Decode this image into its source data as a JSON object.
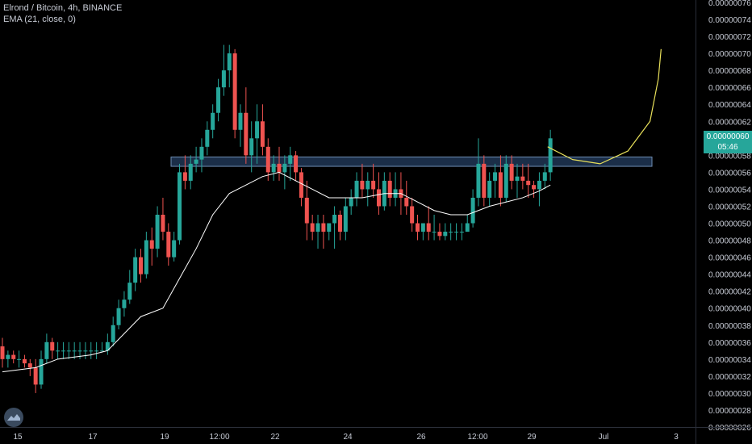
{
  "header": {
    "symbol_line": "Elrond / Bitcoin, 4h, BINANCE",
    "indicator_line": "EMA (21, close, 0)"
  },
  "last_price": {
    "value": "0.00000060",
    "countdown": "05:46"
  },
  "colors": {
    "background": "#000000",
    "up": "#26a69a",
    "down": "#ef5350",
    "ema": "#ffffff",
    "zone_fill": "#1e3350",
    "zone_border": "#6f8fb5",
    "projection": "#e8e05a",
    "axis_text": "#c8ccd6"
  },
  "chart_data": {
    "type": "candlestick",
    "symbol": "Elrond / Bitcoin",
    "interval": "4h",
    "exchange": "BINANCE",
    "y_axis": {
      "range": [
        2.6e-07,
        7.6e-07
      ],
      "tick_labels": [
        "0.00000076",
        "0.00000074",
        "0.00000072",
        "0.00000070",
        "0.00000068",
        "0.00000066",
        "0.00000064",
        "0.00000062",
        "0.00000060",
        "0.00000058",
        "0.00000056",
        "0.00000054",
        "0.00000052",
        "0.00000050",
        "0.00000048",
        "0.00000046",
        "0.00000044",
        "0.00000042",
        "0.00000040",
        "0.00000038",
        "0.00000036",
        "0.00000034",
        "0.00000032",
        "0.00000030",
        "0.00000028",
        "0.00000026"
      ]
    },
    "x_axis": {
      "tick_labels": [
        "15",
        "17",
        "19",
        "12:00",
        "22",
        "24",
        "26",
        "12:00",
        "29",
        "Jul",
        "3"
      ]
    },
    "ohlc": [
      [
        35.5,
        36.5,
        33,
        34
      ],
      [
        34,
        35,
        33,
        34.5
      ],
      [
        34.5,
        35,
        33.5,
        34
      ],
      [
        34,
        35,
        33,
        34
      ],
      [
        34,
        34.5,
        33,
        33.5
      ],
      [
        33.5,
        34,
        32,
        33
      ],
      [
        33,
        34,
        30,
        31
      ],
      [
        31,
        35,
        30.5,
        34
      ],
      [
        34,
        37,
        33.5,
        36
      ],
      [
        36,
        36.5,
        34,
        35
      ],
      [
        35,
        36,
        34,
        35
      ],
      [
        35,
        36,
        34,
        35
      ],
      [
        35,
        36,
        34,
        35
      ],
      [
        35,
        36,
        34,
        35
      ],
      [
        35,
        36,
        34,
        35
      ],
      [
        35,
        36,
        34,
        35
      ],
      [
        35,
        36,
        34,
        35
      ],
      [
        35,
        36,
        34,
        35
      ],
      [
        35,
        36,
        35,
        35
      ],
      [
        35,
        37,
        34.5,
        36
      ],
      [
        36,
        39,
        35.5,
        38
      ],
      [
        38,
        41,
        37.5,
        40
      ],
      [
        40,
        42,
        39,
        41
      ],
      [
        41,
        44.5,
        40.5,
        43
      ],
      [
        43,
        47,
        42,
        46
      ],
      [
        46,
        47,
        43,
        44
      ],
      [
        44,
        49,
        43.5,
        48
      ],
      [
        48,
        49.5,
        45,
        47
      ],
      [
        47,
        52,
        46,
        51
      ],
      [
        51,
        53,
        48,
        49
      ],
      [
        49,
        50,
        45,
        46
      ],
      [
        46,
        49,
        45.5,
        48
      ],
      [
        48,
        57,
        47.5,
        56
      ],
      [
        56,
        58,
        54,
        55
      ],
      [
        55,
        58,
        54,
        57
      ],
      [
        57,
        59,
        56,
        57.5
      ],
      [
        57.5,
        60,
        56,
        59
      ],
      [
        59,
        62,
        58,
        61
      ],
      [
        61,
        64,
        60,
        63
      ],
      [
        63,
        67,
        62,
        66
      ],
      [
        66,
        71,
        65,
        68
      ],
      [
        68,
        71,
        66,
        70
      ],
      [
        70,
        70.5,
        60,
        61
      ],
      [
        61,
        64,
        59,
        63
      ],
      [
        63,
        66,
        57,
        58
      ],
      [
        58,
        62,
        56,
        60
      ],
      [
        60,
        64,
        57,
        62
      ],
      [
        62,
        64,
        58,
        59
      ],
      [
        59,
        60,
        55,
        56
      ],
      [
        56,
        58,
        55,
        57
      ],
      [
        57,
        59,
        55,
        56
      ],
      [
        56,
        58,
        54,
        57
      ],
      [
        57,
        59,
        55,
        58
      ],
      [
        58,
        58.5,
        55,
        56
      ],
      [
        56,
        56.5,
        52,
        53
      ],
      [
        53,
        55,
        48,
        50
      ],
      [
        50,
        51,
        48,
        49
      ],
      [
        49,
        51,
        47,
        50
      ],
      [
        50,
        51,
        47,
        49
      ],
      [
        49,
        50,
        48,
        50
      ],
      [
        50,
        52,
        47,
        51
      ],
      [
        51,
        51.5,
        48,
        49
      ],
      [
        49,
        53,
        48,
        52
      ],
      [
        52,
        54,
        51,
        53
      ],
      [
        53,
        56,
        52,
        55
      ],
      [
        55,
        57,
        53,
        54
      ],
      [
        54,
        56,
        52,
        55
      ],
      [
        55,
        57,
        53,
        54
      ],
      [
        54,
        56,
        51,
        52
      ],
      [
        52,
        56,
        51.5,
        55
      ],
      [
        55,
        56,
        52,
        53
      ],
      [
        53,
        56,
        52,
        54
      ],
      [
        54,
        56,
        51,
        53
      ],
      [
        53,
        55,
        51,
        52
      ],
      [
        52,
        53,
        49,
        50
      ],
      [
        50,
        51,
        48,
        49
      ],
      [
        49,
        50,
        48,
        50
      ],
      [
        50,
        52,
        48,
        49
      ],
      [
        49,
        51,
        48,
        49
      ],
      [
        49,
        50,
        48,
        48.5
      ],
      [
        48.5,
        50,
        48,
        49
      ],
      [
        49,
        50,
        48,
        49
      ],
      [
        49,
        50,
        48,
        49
      ],
      [
        49,
        50,
        48,
        49
      ],
      [
        49,
        51,
        49,
        50
      ],
      [
        50,
        54,
        49.5,
        53
      ],
      [
        53,
        60,
        52,
        57
      ],
      [
        57,
        58,
        52,
        53
      ],
      [
        53,
        56,
        52,
        55
      ],
      [
        55,
        57,
        53,
        56
      ],
      [
        56,
        58,
        52,
        53
      ],
      [
        53,
        58,
        52.5,
        57
      ],
      [
        57,
        58,
        54,
        55
      ],
      [
        55,
        57,
        53,
        55.5
      ],
      [
        55.5,
        57,
        54,
        55
      ],
      [
        55,
        57,
        53,
        54.5
      ],
      [
        54.5,
        55,
        53,
        54
      ],
      [
        54,
        56,
        52,
        55
      ],
      [
        55,
        57,
        54,
        56
      ],
      [
        56,
        61,
        55,
        60
      ]
    ],
    "ema": {
      "name": "EMA (21, close, 0)",
      "points": [
        [
          0,
          32.5
        ],
        [
          6,
          33
        ],
        [
          10,
          34
        ],
        [
          16,
          34.5
        ],
        [
          19,
          35
        ],
        [
          22,
          37
        ],
        [
          25,
          39
        ],
        [
          29,
          40
        ],
        [
          32,
          43.5
        ],
        [
          35,
          47
        ],
        [
          38,
          51
        ],
        [
          41,
          53.5
        ],
        [
          44,
          54.5
        ],
        [
          47,
          55.5
        ],
        [
          50,
          56
        ],
        [
          53,
          55
        ],
        [
          56,
          54
        ],
        [
          59,
          53
        ],
        [
          62,
          53
        ],
        [
          65,
          53
        ],
        [
          69,
          53.5
        ],
        [
          72,
          53.5
        ],
        [
          75,
          52.5
        ],
        [
          78,
          51.5
        ],
        [
          81,
          51
        ],
        [
          84,
          51
        ],
        [
          86,
          51.5
        ],
        [
          88,
          52
        ],
        [
          91,
          52.5
        ],
        [
          94,
          53
        ],
        [
          97,
          53.8
        ],
        [
          99,
          54.5
        ]
      ]
    },
    "resistance_zone": {
      "from_bar": 26.5,
      "to_bar": 115,
      "price_low": 56.7,
      "price_high": 57.8
    },
    "projection_path": [
      [
        98.5,
        59
      ],
      [
        103,
        57.5
      ],
      [
        108,
        57
      ],
      [
        113,
        58.5
      ],
      [
        117,
        62
      ],
      [
        118.5,
        67
      ],
      [
        119,
        70.5
      ]
    ]
  }
}
